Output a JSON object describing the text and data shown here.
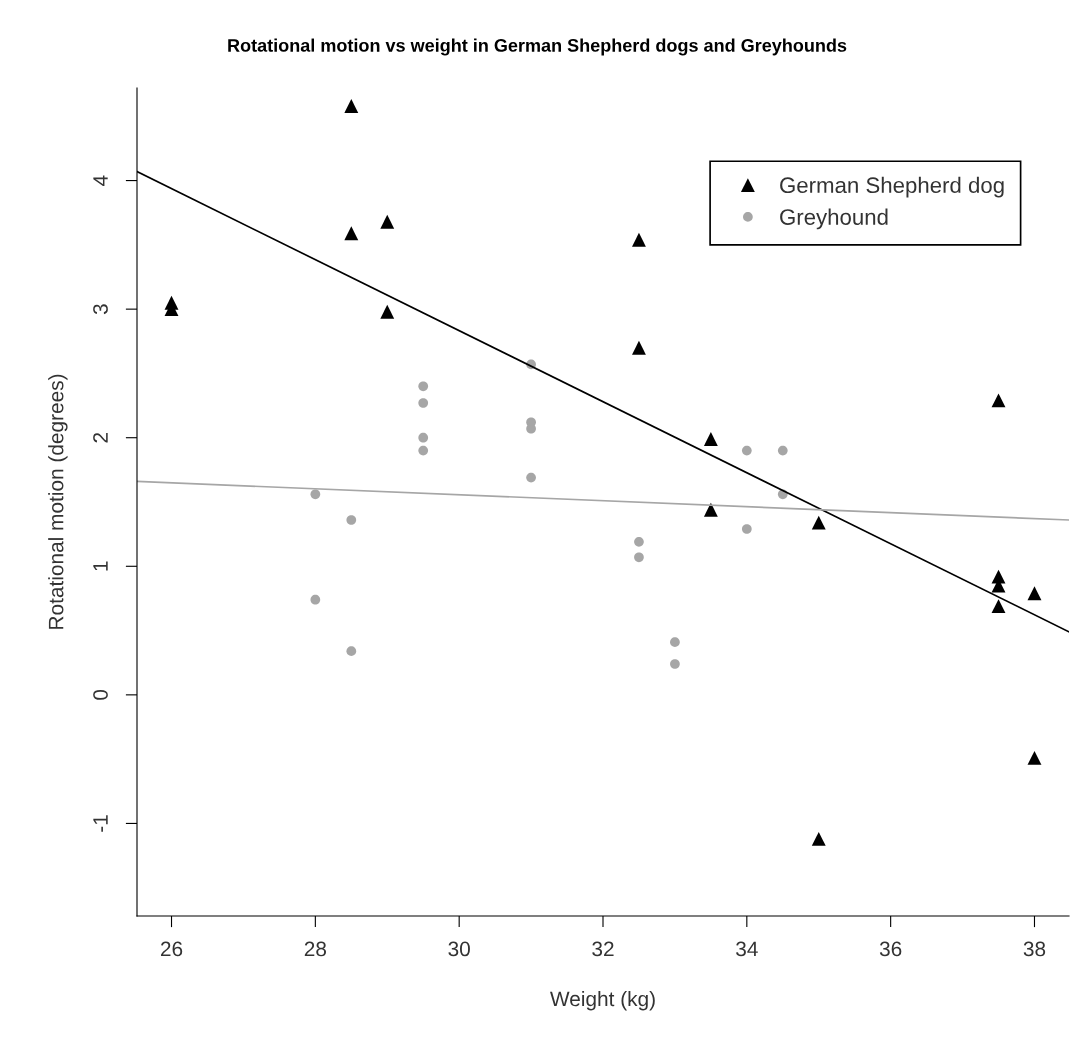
{
  "chart_data": {
    "type": "scatter",
    "title": "Rotational motion vs weight in German Shepherd dogs and Greyhounds",
    "xlabel": "Weight (kg)",
    "ylabel": "Rotational motion (degrees)",
    "xlim": [
      25.52,
      38.48
    ],
    "ylim": [
      -1.72,
      4.72
    ],
    "xticks": [
      26,
      28,
      30,
      32,
      34,
      36,
      38
    ],
    "yticks": [
      -1,
      0,
      1,
      2,
      3,
      4
    ],
    "grid": false,
    "legend": "top right",
    "series": [
      {
        "name": "German Shepherd dog",
        "marker": "triangle",
        "color": "#000000",
        "x": [
          26,
          26,
          28.5,
          28.5,
          29,
          29,
          32.5,
          32.5,
          33.5,
          33.5,
          35,
          35,
          37.5,
          37.5,
          37.5,
          37.5,
          38,
          38
        ],
        "values": [
          3.05,
          3.0,
          4.58,
          3.59,
          3.68,
          2.98,
          3.54,
          2.7,
          1.99,
          1.44,
          1.34,
          -1.12,
          2.29,
          0.92,
          0.85,
          0.69,
          0.79,
          -0.49
        ]
      },
      {
        "name": "Greyhound",
        "marker": "circle",
        "color": "#a6a6a6",
        "x": [
          28,
          28,
          28.5,
          28.5,
          29.5,
          29.5,
          29.5,
          29.5,
          31,
          31,
          31,
          31,
          32.5,
          32.5,
          33,
          33,
          34,
          34,
          34.5,
          34.5
        ],
        "values": [
          1.56,
          0.74,
          1.36,
          0.34,
          2.4,
          2.27,
          2.0,
          1.9,
          2.57,
          2.12,
          2.07,
          1.69,
          1.19,
          1.07,
          0.41,
          0.24,
          1.9,
          1.29,
          1.9,
          1.56
        ]
      },
      {
        "type": "line",
        "marker": "none",
        "line_style": "solid",
        "color": "#000000",
        "x": [
          25.52,
          38.48
        ],
        "values": [
          4.07,
          0.49
        ]
      },
      {
        "type": "line",
        "marker": "none",
        "line_style": "solid",
        "color": "#a6a6a6",
        "x": [
          25.52,
          38.48
        ],
        "values": [
          1.66,
          1.36
        ]
      }
    ]
  }
}
